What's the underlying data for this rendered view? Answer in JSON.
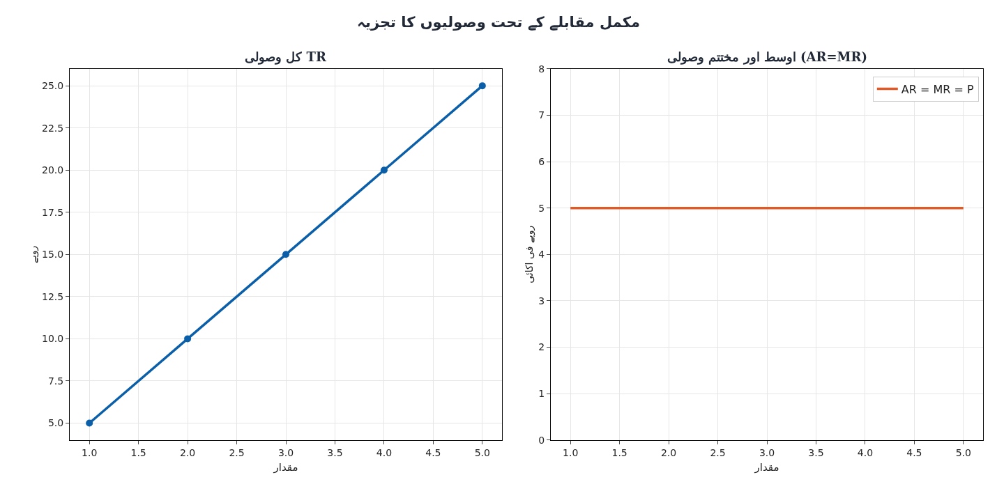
{
  "chart_data": [
    {
      "type": "line",
      "title": "کل وصولی TR",
      "xlabel": "مقدار",
      "ylabel": "روپے",
      "annotations": [
        "مکمل مقابلے کے تحت وصولیوں کا تجزیہ"
      ],
      "x": [
        1,
        2,
        3,
        4,
        5
      ],
      "series": [
        {
          "color": "#0a5fa8",
          "values": [
            5,
            10,
            15,
            20,
            25
          ]
        }
      ],
      "xlim": [
        0.8,
        5.2
      ],
      "xticks": [
        {
          "value": 1,
          "label": "1.0"
        },
        {
          "value": 1.5,
          "label": "1.5"
        },
        {
          "value": 2,
          "label": "2.0"
        },
        {
          "value": 2.5,
          "label": "2.5"
        },
        {
          "value": 3,
          "label": "3.0"
        },
        {
          "value": 3.5,
          "label": "3.5"
        },
        {
          "value": 4,
          "label": "4.0"
        },
        {
          "value": 4.5,
          "label": "4.5"
        },
        {
          "value": 5,
          "label": "5.0"
        }
      ],
      "ylim": [
        4,
        26
      ],
      "yticks": [
        {
          "value": 5,
          "label": "5.0"
        },
        {
          "value": 7.5,
          "label": "7.5"
        },
        {
          "value": 10,
          "label": "10.0"
        },
        {
          "value": 12.5,
          "label": "12.5"
        },
        {
          "value": 15,
          "label": "15.0"
        },
        {
          "value": 17.5,
          "label": "17.5"
        },
        {
          "value": 20,
          "label": "20.0"
        },
        {
          "value": 22.5,
          "label": "22.5"
        },
        {
          "value": 25,
          "label": "25.0"
        }
      ],
      "grid": true,
      "marker": "circle",
      "line_style": "solid"
    },
    {
      "type": "line",
      "title": "اوسط اور مختتم وصولی (AR=MR)",
      "xlabel": "مقدار",
      "ylabel": "روپے فی اکائی",
      "x": [
        1,
        2,
        3,
        4,
        5
      ],
      "series": [
        {
          "name": "AR = MR = P",
          "color": "#e05a28",
          "values": [
            5,
            5,
            5,
            5,
            5
          ]
        }
      ],
      "xlim": [
        0.8,
        5.2
      ],
      "xticks": [
        {
          "value": 1,
          "label": "1.0"
        },
        {
          "value": 1.5,
          "label": "1.5"
        },
        {
          "value": 2,
          "label": "2.0"
        },
        {
          "value": 2.5,
          "label": "2.5"
        },
        {
          "value": 3,
          "label": "3.0"
        },
        {
          "value": 3.5,
          "label": "3.5"
        },
        {
          "value": 4,
          "label": "4.0"
        },
        {
          "value": 4.5,
          "label": "4.5"
        },
        {
          "value": 5,
          "label": "5.0"
        }
      ],
      "ylim": [
        0,
        8
      ],
      "yticks": [
        0,
        1,
        2,
        3,
        4,
        5,
        6,
        7,
        8
      ],
      "grid": true,
      "legend": "top right",
      "line_style": "solid"
    }
  ]
}
